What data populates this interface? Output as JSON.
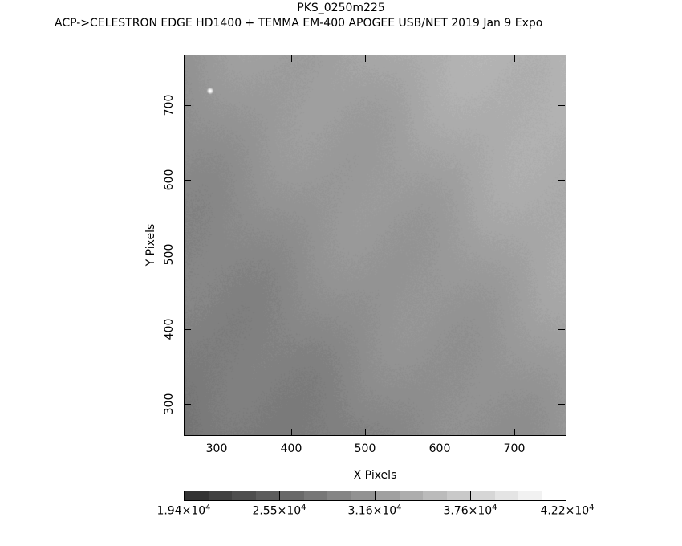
{
  "header": {
    "title": "PKS_0250m225",
    "subtitle": "ACP->CELESTRON EDGE HD1400 + TEMMA EM-400 APOGEE USB/NET   2019 Jan  9    Expo"
  },
  "chart_data": {
    "type": "heatmap",
    "xlabel": "X Pixels",
    "ylabel": "Y Pixels",
    "xlim": [
      256,
      770
    ],
    "ylim": [
      257,
      768
    ],
    "xticks": [
      300,
      400,
      500,
      600,
      700
    ],
    "yticks": [
      300,
      400,
      500,
      600,
      700
    ],
    "colormap": "grayscale",
    "colorbar": {
      "range": [
        19400,
        42200
      ],
      "levels": 16,
      "tick_labels": [
        {
          "mantissa": "1.94",
          "exp": "4",
          "value": 19400
        },
        {
          "mantissa": "2.55",
          "exp": "4",
          "value": 25500
        },
        {
          "mantissa": "3.16",
          "exp": "4",
          "value": 31600
        },
        {
          "mantissa": "3.76",
          "exp": "4",
          "value": 37600
        },
        {
          "mantissa": "4.22",
          "exp": "4",
          "value": 42200
        }
      ]
    },
    "gradient": "brighter toward upper-right, darker toward lower-left, diagonal banding",
    "sources": [
      {
        "x": 291,
        "y": 720
      }
    ]
  }
}
